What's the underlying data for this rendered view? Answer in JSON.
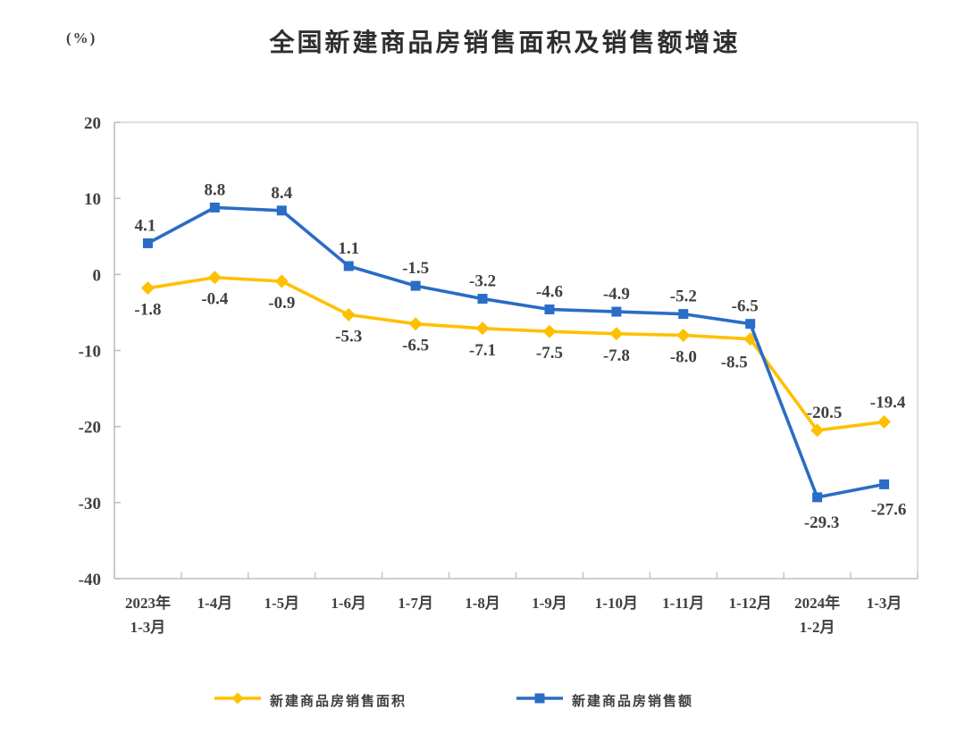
{
  "header": {
    "title": "全国新建商品房销售面积及销售额增速",
    "unit_label": "(%)"
  },
  "chart_data": {
    "type": "line",
    "title": "全国新建商品房销售面积及销售额增速",
    "unit": "%",
    "categories": [
      [
        "2023年",
        "1-3月"
      ],
      [
        "1-4月"
      ],
      [
        "1-5月"
      ],
      [
        "1-6月"
      ],
      [
        "1-7月"
      ],
      [
        "1-8月"
      ],
      [
        "1-9月"
      ],
      [
        "1-10月"
      ],
      [
        "1-11月"
      ],
      [
        "1-12月"
      ],
      [
        "2024年",
        "1-2月"
      ],
      [
        "1-3月"
      ]
    ],
    "series": [
      {
        "name": "新建商品房销售面积",
        "color": "#FFC000",
        "marker": "diamond",
        "label_side": "below",
        "values": [
          -1.8,
          -0.4,
          -0.9,
          -5.3,
          -6.5,
          -7.1,
          -7.5,
          -7.8,
          -8.0,
          -8.5,
          -20.5,
          -19.4
        ],
        "label_overrides": {
          "9": {
            "dx": -18,
            "dy": 2
          },
          "10": {
            "side": "above",
            "dx": 8
          },
          "11": {
            "side": "above",
            "dx": 4,
            "dy": -2
          }
        }
      },
      {
        "name": "新建商品房销售额",
        "color": "#2A6CC6",
        "marker": "square",
        "label_side": "above",
        "values": [
          4.1,
          8.8,
          8.4,
          1.1,
          -1.5,
          -3.2,
          -4.6,
          -4.9,
          -5.2,
          -6.5,
          -29.3,
          -27.6
        ],
        "label_overrides": {
          "0": {
            "dx": -3
          },
          "9": {
            "dx": -6
          },
          "10": {
            "side": "below",
            "dx": 5,
            "dy": 4
          },
          "11": {
            "side": "below",
            "dx": 5,
            "dy": 4
          }
        }
      }
    ],
    "ylim": [
      -40,
      20
    ],
    "ytick_step": 10,
    "ytick_labels": [
      "20",
      "10",
      "0",
      "-10",
      "-20",
      "-30",
      "-40"
    ],
    "grid": false,
    "legend_position": "bottom",
    "axis_color": "#BFBFBF",
    "border_color": "#CCCCCC",
    "text_color": "#404040"
  }
}
